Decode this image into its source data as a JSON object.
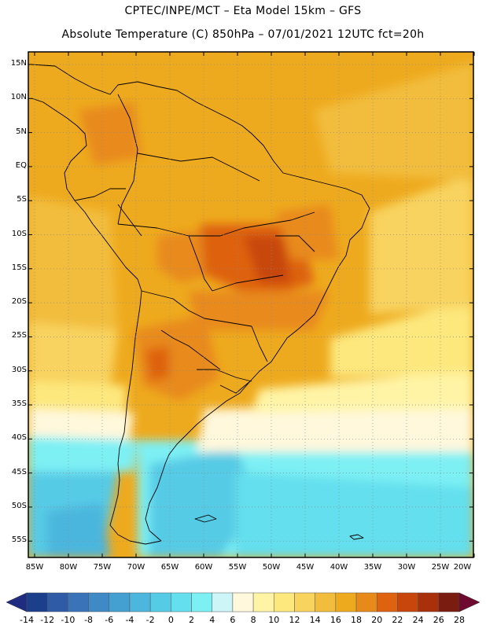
{
  "header": {
    "line1": "CPTEC/INPE/MCT –  Eta Model 15km – GFS",
    "line2": "Absolute Temperature (C) 850hPa – 07/01/2021 12UTC fct=20h"
  },
  "map": {
    "lat_labels": [
      "15N",
      "10N",
      "5N",
      "EQ",
      "5S",
      "10S",
      "15S",
      "20S",
      "25S",
      "30S",
      "35S",
      "40S",
      "45S",
      "50S",
      "55S"
    ],
    "lon_labels": [
      "85W",
      "80W",
      "75W",
      "70W",
      "65W",
      "60W",
      "55W",
      "50W",
      "45W",
      "40W",
      "35W",
      "30W",
      "25W",
      "20W"
    ]
  },
  "colorbar": {
    "labels": [
      "-14",
      "-12",
      "-10",
      "-8",
      "-6",
      "-4",
      "-2",
      "0",
      "2",
      "4",
      "6",
      "8",
      "10",
      "12",
      "14",
      "16",
      "18",
      "20",
      "22",
      "24",
      "26",
      "28"
    ],
    "colors": [
      "#1c3f8c",
      "#2e5aa6",
      "#3a73b8",
      "#3f89c4",
      "#45a0d2",
      "#4cb6dd",
      "#56cbe6",
      "#63dfee",
      "#7df0f4",
      "#cdf4f7",
      "#fff8dc",
      "#fff4a6",
      "#fde87e",
      "#f8d35e",
      "#f2bd3c",
      "#eeaa1e",
      "#e88a1a",
      "#de6210",
      "#c8460c",
      "#a8300a",
      "#7a1c10"
    ],
    "under_color": "#202c80",
    "over_color": "#6e0a30"
  }
}
